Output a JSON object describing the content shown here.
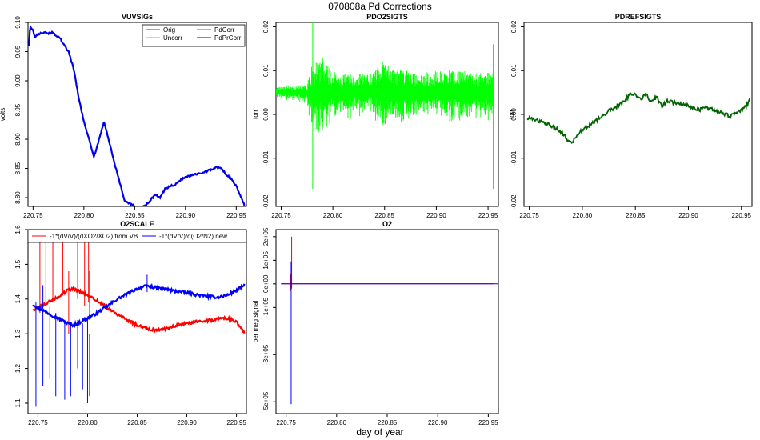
{
  "page_title": "070808a   Pd Corrections",
  "x_axis_label": "day of year",
  "chart_data": [
    {
      "id": "vuvsigs",
      "type": "line",
      "title": "VUVSIGs",
      "xlabel": "",
      "ylabel": "volts",
      "xlim": [
        220.745,
        220.96
      ],
      "ylim": [
        8.785,
        9.1
      ],
      "xticks": [
        220.75,
        220.8,
        220.85,
        220.9,
        220.95
      ],
      "xtick_labels": [
        "220.75",
        "220.80",
        "220.85",
        "220.90",
        "220.95"
      ],
      "yticks": [
        8.8,
        8.85,
        8.9,
        8.95,
        9.0,
        9.05,
        9.1
      ],
      "ytick_labels": [
        "8.80",
        "8.85",
        "8.90",
        "8.95",
        "9.00",
        "9.05",
        "9.10"
      ],
      "legend_position": "top-right",
      "legend": [
        {
          "label": "Orig",
          "color": "#ff0000"
        },
        {
          "label": "PdCorr",
          "color": "#ff00ff"
        },
        {
          "label": "Uncorr",
          "color": "#00e5ee"
        },
        {
          "label": "PdPrCorr",
          "color": "#0000ee"
        }
      ],
      "series": [
        {
          "name": "PdPrCorr",
          "color": "#0000ee",
          "x": [
            220.746,
            220.747,
            220.75,
            220.752,
            220.755,
            220.76,
            220.765,
            220.77,
            220.772,
            220.775,
            220.777,
            220.78,
            220.785,
            220.79,
            220.795,
            220.8,
            220.81,
            220.82,
            220.83,
            220.84,
            220.845,
            220.85,
            220.855,
            220.86,
            220.865,
            220.87,
            220.875,
            220.88,
            220.885,
            220.89,
            220.895,
            220.9,
            220.905,
            220.91,
            220.915,
            220.92,
            220.925,
            220.93,
            220.935,
            220.94,
            220.945,
            220.95,
            220.955,
            220.958
          ],
          "y": [
            9.06,
            9.095,
            9.085,
            9.075,
            9.08,
            9.083,
            9.081,
            9.083,
            9.078,
            9.075,
            9.072,
            9.062,
            9.05,
            9.02,
            8.97,
            8.93,
            8.87,
            8.93,
            8.86,
            8.795,
            8.79,
            8.785,
            8.78,
            8.786,
            8.795,
            8.805,
            8.8,
            8.815,
            8.82,
            8.822,
            8.83,
            8.835,
            8.838,
            8.84,
            8.842,
            8.845,
            8.848,
            8.852,
            8.85,
            8.84,
            8.832,
            8.82,
            8.8,
            8.788
          ]
        }
      ]
    },
    {
      "id": "pdo2sigts",
      "type": "line",
      "title": "PDO2SIGTS",
      "ylabel": "torr",
      "xlim": [
        220.745,
        220.96
      ],
      "ylim": [
        -0.021,
        0.021
      ],
      "xticks": [
        220.75,
        220.8,
        220.85,
        220.9,
        220.95
      ],
      "xtick_labels": [
        "220.75",
        "220.80",
        "220.85",
        "220.90",
        "220.95"
      ],
      "yticks": [
        -0.02,
        -0.01,
        0.0,
        0.01,
        0.02
      ],
      "ytick_labels": [
        "-0.02",
        "-0.01",
        "0.00",
        "0.01",
        "0.02"
      ],
      "series": [
        {
          "name": "PDO2SIGTS",
          "color": "#00ff00",
          "x": [
            220.745,
            220.76,
            220.775,
            220.78,
            220.79,
            220.8,
            220.82,
            220.84,
            220.85,
            220.86,
            220.87,
            220.88,
            220.9,
            220.92,
            220.94,
            220.955
          ],
          "y": [
            0.0052,
            0.005,
            0.0049,
            0.0045,
            0.005,
            0.0048,
            0.0049,
            0.0051,
            0.005,
            0.0048,
            0.005,
            0.0049,
            0.005,
            0.0048,
            0.005,
            0.0049
          ],
          "spread": [
            0.0008,
            0.0012,
            0.0015,
            0.006,
            0.006,
            0.004,
            0.0035,
            0.004,
            0.0055,
            0.004,
            0.0045,
            0.0035,
            0.004,
            0.0045,
            0.0035,
            0.004
          ],
          "spikes": [
            [
              220.7805,
              0.0215,
              -0.017
            ],
            [
              220.79,
              0.013,
              -0.003
            ],
            [
              220.848,
              0.012,
              -0.002
            ],
            [
              220.955,
              0.016,
              -0.017
            ]
          ]
        }
      ]
    },
    {
      "id": "pdrefsigts",
      "type": "line",
      "title": "PDREFSIGTS",
      "ylabel": "torr",
      "xlim": [
        220.745,
        220.96
      ],
      "ylim": [
        -0.021,
        0.021
      ],
      "xticks": [
        220.75,
        220.8,
        220.85,
        220.9,
        220.95
      ],
      "xtick_labels": [
        "220.75",
        "220.80",
        "220.85",
        "220.90",
        "220.95"
      ],
      "yticks": [
        -0.02,
        -0.01,
        0.0,
        0.01,
        0.02
      ],
      "ytick_labels": [
        "-0.02",
        "-0.01",
        "0.00",
        "0.01",
        "0.02"
      ],
      "series": [
        {
          "name": "PDREFSIGTS",
          "color": "#006400",
          "x": [
            220.748,
            220.76,
            220.77,
            220.78,
            220.785,
            220.79,
            220.795,
            220.8,
            220.81,
            220.82,
            220.83,
            220.84,
            220.845,
            220.85,
            220.855,
            220.86,
            220.865,
            220.87,
            220.875,
            220.88,
            220.89,
            220.9,
            220.91,
            220.92,
            220.93,
            220.94,
            220.945,
            220.95,
            220.955,
            220.958
          ],
          "y": [
            -0.0008,
            -0.0015,
            -0.0025,
            -0.004,
            -0.0055,
            -0.0065,
            -0.005,
            -0.0035,
            -0.002,
            0.0,
            0.0015,
            0.003,
            0.0045,
            0.0048,
            0.0035,
            0.0045,
            0.003,
            0.004,
            0.002,
            0.003,
            0.0025,
            0.002,
            0.001,
            0.0015,
            0.0005,
            -0.0005,
            0.0005,
            0.001,
            0.002,
            0.0035
          ]
        }
      ]
    },
    {
      "id": "o2scale",
      "type": "line",
      "title": "O2SCALE",
      "ylabel": "",
      "xlim": [
        220.74,
        220.96
      ],
      "ylim": [
        1.07,
        1.6
      ],
      "xticks": [
        220.75,
        220.8,
        220.85,
        220.9,
        220.95
      ],
      "xtick_labels": [
        "220.75",
        "220.80",
        "220.85",
        "220.90",
        "220.95"
      ],
      "yticks": [
        1.1,
        1.2,
        1.3,
        1.4,
        1.5,
        1.6
      ],
      "ytick_labels": [
        "1.1",
        "1.2",
        "1.3",
        "1.4",
        "1.5",
        "1.6"
      ],
      "legend_position": "top",
      "legend": [
        {
          "label": "-1*(dV/V)/(dXO2/XO2) from VB",
          "color": "#ff0000"
        },
        {
          "label": "-1*(dV/V)/d(O2/N2) new",
          "color": "#0000ff"
        }
      ],
      "series": [
        {
          "name": "-1*(dV/V)/(dXO2/XO2) from VB",
          "color": "#ff0000",
          "x": [
            220.745,
            220.75,
            220.76,
            220.77,
            220.78,
            220.785,
            220.79,
            220.8,
            220.81,
            220.82,
            220.83,
            220.84,
            220.85,
            220.86,
            220.87,
            220.88,
            220.89,
            220.9,
            220.91,
            220.92,
            220.93,
            220.94,
            220.95,
            220.958
          ],
          "y": [
            1.37,
            1.375,
            1.39,
            1.405,
            1.425,
            1.43,
            1.425,
            1.41,
            1.395,
            1.375,
            1.355,
            1.34,
            1.325,
            1.315,
            1.31,
            1.315,
            1.325,
            1.33,
            1.335,
            1.338,
            1.342,
            1.345,
            1.335,
            1.305
          ],
          "spikes": [
            [
              220.752,
              1.6,
              1.36
            ],
            [
              220.758,
              1.6,
              1.38
            ],
            [
              220.765,
              1.6,
              1.39
            ],
            [
              220.775,
              1.6,
              1.41
            ],
            [
              220.781,
              1.48,
              1.3
            ],
            [
              220.79,
              1.6,
              1.4
            ],
            [
              220.797,
              1.6,
              1.38
            ],
            [
              220.801,
              1.6,
              1.39
            ],
            [
              220.802,
              1.48,
              1.35
            ]
          ]
        },
        {
          "name": "-1*(dV/V)/d(O2/N2) new",
          "color": "#0000ff",
          "x": [
            220.745,
            220.75,
            220.76,
            220.77,
            220.78,
            220.785,
            220.79,
            220.8,
            220.81,
            220.82,
            220.83,
            220.84,
            220.85,
            220.86,
            220.87,
            220.88,
            220.89,
            220.9,
            220.91,
            220.92,
            220.93,
            220.94,
            220.95,
            220.958
          ],
          "y": [
            1.385,
            1.375,
            1.36,
            1.345,
            1.33,
            1.325,
            1.33,
            1.345,
            1.36,
            1.38,
            1.4,
            1.415,
            1.43,
            1.438,
            1.432,
            1.428,
            1.422,
            1.418,
            1.412,
            1.408,
            1.405,
            1.41,
            1.425,
            1.44
          ],
          "spikes": [
            [
              220.748,
              1.39,
              1.09
            ],
            [
              220.755,
              1.44,
              1.15
            ],
            [
              220.762,
              1.38,
              1.17
            ],
            [
              220.768,
              1.36,
              1.12
            ],
            [
              220.777,
              1.34,
              1.11
            ],
            [
              220.783,
              1.33,
              1.12
            ],
            [
              220.79,
              1.34,
              1.2
            ],
            [
              220.795,
              1.33,
              1.14
            ],
            [
              220.8,
              1.34,
              1.1
            ],
            [
              220.802,
              1.3,
              1.12
            ],
            [
              220.86,
              1.47,
              1.42
            ]
          ]
        }
      ]
    },
    {
      "id": "o2",
      "type": "line",
      "title": "O2",
      "ylabel": "per meg signal",
      "xlim": [
        220.74,
        220.96
      ],
      "ylim": [
        -550000,
        230000
      ],
      "xticks": [
        220.75,
        220.8,
        220.85,
        220.9,
        220.95
      ],
      "xtick_labels": [
        "220.75",
        "220.80",
        "220.85",
        "220.90",
        "220.95"
      ],
      "yticks": [
        -500000,
        -300000,
        -100000,
        0,
        100000,
        200000
      ],
      "ytick_labels": [
        "-5e+05",
        "-3e+05",
        "-1e+05",
        "0e+00",
        "1e+05",
        "2e+05"
      ],
      "series": [
        {
          "name": "red",
          "color": "#ff0000",
          "x": [
            220.745,
            220.955
          ],
          "y": [
            0,
            0
          ],
          "spikes": [
            [
              220.7555,
              200000,
              -20000
            ],
            [
              220.7545,
              40000,
              -30000
            ]
          ]
        },
        {
          "name": "blue",
          "color": "#0000ff",
          "x": [
            220.745,
            220.96
          ],
          "y": [
            0,
            0
          ],
          "spikes": [
            [
              220.755,
              95000,
              -510000
            ]
          ]
        }
      ]
    }
  ]
}
